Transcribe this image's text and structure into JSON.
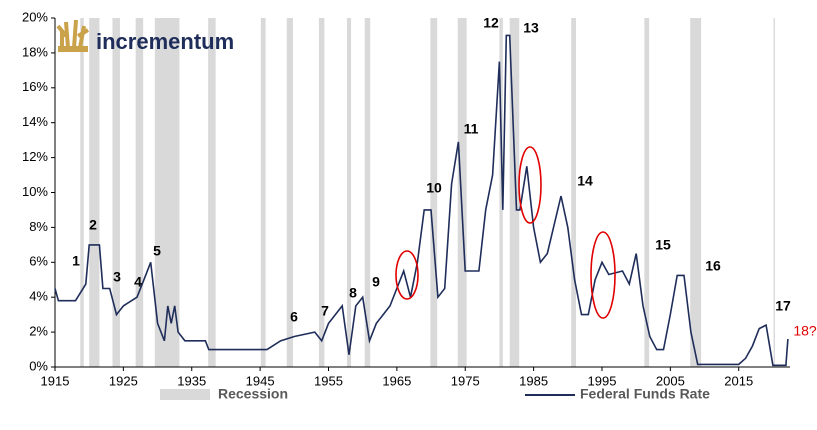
{
  "logo": "incrementum",
  "chart_data": {
    "type": "line",
    "xlim": [
      1915,
      2022.5
    ],
    "ylim": [
      0,
      20
    ],
    "xticks": [
      1915,
      1925,
      1935,
      1945,
      1955,
      1965,
      1975,
      1985,
      1995,
      2005,
      2015
    ],
    "yticks": [
      {
        "value": 0,
        "label": "0%"
      },
      {
        "value": 2,
        "label": "2%"
      },
      {
        "value": 4,
        "label": "4%"
      },
      {
        "value": 6,
        "label": "6%"
      },
      {
        "value": 8,
        "label": "8%"
      },
      {
        "value": 10,
        "label": "10%"
      },
      {
        "value": 12,
        "label": "12%"
      },
      {
        "value": 14,
        "label": "14%"
      },
      {
        "value": 16,
        "label": "16%"
      },
      {
        "value": 18,
        "label": "18%"
      },
      {
        "value": 20,
        "label": "20%"
      }
    ],
    "recession_name": "Recession",
    "recession_color": "#d9d9d9",
    "recessions": [
      [
        1918.7,
        1919.2
      ],
      [
        1920,
        1921.5
      ],
      [
        1923.4,
        1924.5
      ],
      [
        1926.8,
        1927.9
      ],
      [
        1929.6,
        1933.2
      ],
      [
        1937.4,
        1938.5
      ],
      [
        1945.1,
        1945.8
      ],
      [
        1948.9,
        1949.8
      ],
      [
        1953.6,
        1954.4
      ],
      [
        1957.7,
        1958.3
      ],
      [
        1960.3,
        1961.1
      ],
      [
        1969.9,
        1970.9
      ],
      [
        1973.9,
        1975.2
      ],
      [
        1980,
        1980.5
      ],
      [
        1981.5,
        1982.9
      ],
      [
        1990.5,
        1991.2
      ],
      [
        2001.2,
        2001.9
      ],
      [
        2007.9,
        2009.5
      ],
      [
        2020.1,
        2020.3
      ]
    ],
    "annotations": [
      "1",
      "2",
      "3",
      "4",
      "5",
      "6",
      "7",
      "8",
      "9",
      "10",
      "11",
      "12",
      "13",
      "14",
      "15",
      "16",
      "17",
      "18?"
    ],
    "series": [
      {
        "name": "Federal Funds Rate",
        "color": "#1f2d5a",
        "x": [
          1915,
          1915.5,
          1918,
          1919.5,
          1920,
          1921.5,
          1922,
          1923,
          1924,
          1925,
          1927,
          1928,
          1929,
          1930,
          1931,
          1931.5,
          1932,
          1932.5,
          1933,
          1934,
          1937,
          1937.5,
          1946,
          1948,
          1950,
          1953,
          1954,
          1955,
          1957,
          1958,
          1959,
          1960,
          1961,
          1962,
          1964,
          1966,
          1967,
          1968,
          1969,
          1970,
          1971,
          1972,
          1973,
          1974,
          1975,
          1977,
          1978,
          1979,
          1980,
          1980.5,
          1981,
          1981.5,
          1982,
          1982.5,
          1983,
          1984,
          1985,
          1986,
          1987,
          1989,
          1990,
          1991,
          1992,
          1993,
          1994,
          1995,
          1996,
          1998,
          1999,
          2000,
          2001,
          2002,
          2003,
          2004,
          2005,
          2006,
          2007,
          2008,
          2009,
          2015,
          2016,
          2017,
          2018,
          2019,
          2020,
          2021.9,
          2022.2
        ],
        "values": [
          4.5,
          3.8,
          3.8,
          4.75,
          7,
          7,
          4.5,
          4.5,
          3,
          3.5,
          4,
          5,
          6,
          2.5,
          1.5,
          3.5,
          2.5,
          3.5,
          2,
          1.5,
          1.5,
          1,
          1,
          1.5,
          1.75,
          2,
          1.5,
          2.5,
          3.5,
          0.7,
          3.5,
          4,
          1.5,
          2.5,
          3.5,
          5.5,
          4,
          6,
          9,
          9,
          4,
          4.5,
          10.5,
          12.9,
          5.5,
          5.5,
          9,
          11,
          17.5,
          9,
          19,
          19,
          14,
          9,
          9,
          11.5,
          8,
          6,
          6.5,
          9.8,
          8,
          5,
          3,
          3,
          5,
          6,
          5.3,
          5.5,
          4.75,
          6.5,
          3.5,
          1.75,
          1,
          1,
          3,
          5.25,
          5.25,
          2,
          0.15,
          0.15,
          0.5,
          1.2,
          2.2,
          2.4,
          0.1,
          0.1,
          1.6
        ]
      }
    ]
  }
}
